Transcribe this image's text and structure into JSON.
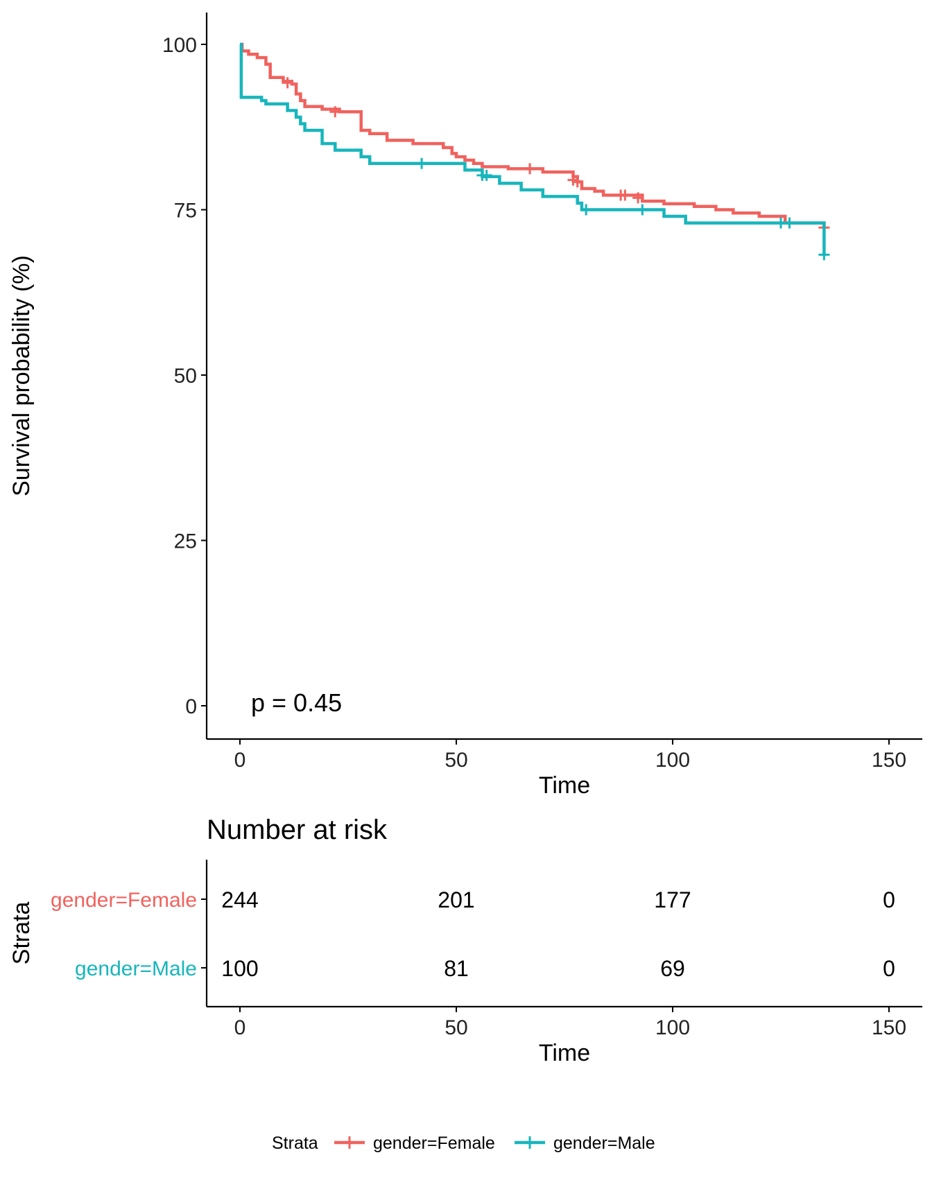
{
  "colors": {
    "female": "#F0625E",
    "male": "#17B6BC",
    "axis": "#000000",
    "text": "#000000"
  },
  "chart_data": [
    {
      "type": "line",
      "chart_kind": "kaplan-meier",
      "xlabel": "Time",
      "ylabel": "Survival probability (%)",
      "xlim": [
        0,
        150
      ],
      "ylim": [
        0,
        100
      ],
      "xticks": [
        0,
        50,
        100,
        150
      ],
      "yticks": [
        0,
        25,
        50,
        75,
        100
      ],
      "grid": false,
      "annotation": "p = 0.45",
      "series": [
        {
          "name": "gender=Female",
          "color": "#F0625E",
          "steps": [
            [
              0,
              100
            ],
            [
              0.5,
              99
            ],
            [
              2,
              98.5
            ],
            [
              4,
              98
            ],
            [
              6,
              97
            ],
            [
              7,
              95
            ],
            [
              10,
              94.4
            ],
            [
              12,
              94
            ],
            [
              13,
              92.5
            ],
            [
              14,
              91.5
            ],
            [
              15,
              90.6
            ],
            [
              19,
              90.2
            ],
            [
              23,
              89.8
            ],
            [
              28,
              87
            ],
            [
              30,
              86.5
            ],
            [
              34,
              85.5
            ],
            [
              40,
              85
            ],
            [
              47,
              84.4
            ],
            [
              49,
              83.5
            ],
            [
              50,
              83
            ],
            [
              52,
              82.5
            ],
            [
              54,
              82
            ],
            [
              56,
              81.5
            ],
            [
              62,
              81.2
            ],
            [
              70,
              80.7
            ],
            [
              77,
              80
            ],
            [
              78,
              79.2
            ],
            [
              79,
              78.2
            ],
            [
              82,
              77.8
            ],
            [
              84,
              77.2
            ],
            [
              93,
              76.3
            ],
            [
              98,
              75.9
            ],
            [
              105,
              75.5
            ],
            [
              110,
              75
            ],
            [
              114,
              74.5
            ],
            [
              120,
              74
            ],
            [
              126,
              73
            ],
            [
              135,
              72.5
            ]
          ],
          "end": 135,
          "censors": [
            [
              11,
              94.2
            ],
            [
              22,
              89.8
            ],
            [
              67,
              81.2
            ],
            [
              77,
              79.5
            ],
            [
              78,
              79.2
            ],
            [
              88,
              77.2
            ],
            [
              89,
              77.2
            ],
            [
              92,
              76.8
            ],
            [
              135,
              72.3
            ]
          ]
        },
        {
          "name": "gender=Male",
          "color": "#17B6BC",
          "steps": [
            [
              0,
              100
            ],
            [
              0.3,
              92
            ],
            [
              5,
              91.5
            ],
            [
              6,
              91
            ],
            [
              11,
              90
            ],
            [
              13,
              89
            ],
            [
              14,
              88
            ],
            [
              15,
              87
            ],
            [
              19,
              85
            ],
            [
              22,
              84
            ],
            [
              28,
              83
            ],
            [
              30,
              82
            ],
            [
              48,
              82
            ],
            [
              52,
              81
            ],
            [
              56,
              80
            ],
            [
              60,
              79
            ],
            [
              65,
              78
            ],
            [
              70,
              77
            ],
            [
              78,
              76
            ],
            [
              79,
              75
            ],
            [
              92,
              75
            ],
            [
              98,
              74
            ],
            [
              103,
              73
            ],
            [
              135,
              73
            ],
            [
              135,
              68
            ]
          ],
          "end": 135,
          "censors": [
            [
              42,
              82
            ],
            [
              56,
              80.2
            ],
            [
              57,
              80.2
            ],
            [
              80,
              75
            ],
            [
              93,
              75
            ],
            [
              125,
              73
            ],
            [
              127,
              73
            ],
            [
              135,
              68.2
            ]
          ]
        }
      ]
    },
    {
      "type": "table",
      "title": "Number at risk",
      "xlabel": "Time",
      "ylabel": "Strata",
      "xlim": [
        0,
        150
      ],
      "xticks": [
        0,
        50,
        100,
        150
      ],
      "times": [
        0,
        50,
        100,
        150
      ],
      "rows": [
        {
          "label": "gender=Female",
          "color": "#F0625E",
          "values": [
            244,
            201,
            177,
            0
          ]
        },
        {
          "label": "gender=Male",
          "color": "#17B6BC",
          "values": [
            100,
            81,
            69,
            0
          ]
        }
      ]
    }
  ],
  "legend": {
    "title": "Strata",
    "position": "bottom",
    "items": [
      {
        "label": "gender=Female",
        "color": "#F0625E"
      },
      {
        "label": "gender=Male",
        "color": "#17B6BC"
      }
    ]
  }
}
